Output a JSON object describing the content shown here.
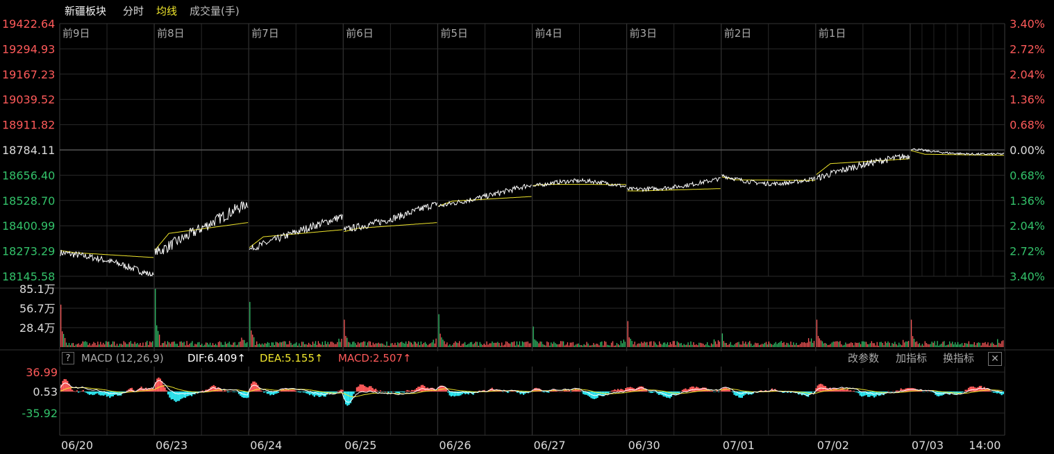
{
  "header": {
    "title": "新疆板块",
    "tab_fenshi": "分时",
    "tab_junxian": "均线",
    "tab_volume": "成交量(手)"
  },
  "colors": {
    "price": "#ffffff",
    "avg": "#f0e62c",
    "up": "#ff5a5a",
    "down": "#33c26a",
    "macd_neg": "#2fe6f0",
    "grid": "#2a2a2a"
  },
  "macd_panel": {
    "help_label": "?",
    "indicator": "MACD (12,26,9)",
    "dif": "DIF:6.409↑",
    "dea": "DEA:5.155↑",
    "macd": "MACD:2.507↑",
    "btn_params": "改参数",
    "btn_add": "加指标",
    "btn_switch": "换指标",
    "btn_close": "✕"
  },
  "chart_data": [
    {
      "type": "line",
      "title": "新疆板块",
      "price_axis_labels": [
        "19422.64",
        "19294.93",
        "19167.23",
        "19039.52",
        "18911.82",
        "18784.11",
        "18656.40",
        "18528.70",
        "18400.99",
        "18273.29",
        "18145.58"
      ],
      "pct_axis_labels": [
        "3.40%",
        "2.72%",
        "2.04%",
        "1.36%",
        "0.68%",
        "0.00%",
        "0.68%",
        "1.36%",
        "2.04%",
        "2.72%",
        "3.40%"
      ],
      "ylim": [
        18145.58,
        19422.64
      ],
      "reference_price": 18784.11,
      "day_markers": [
        "前9日",
        "前8日",
        "前7日",
        "前6日",
        "前5日",
        "前4日",
        "前3日",
        "前2日",
        "前1日"
      ],
      "x_dates": [
        "06/20",
        "06/23",
        "06/24",
        "06/25",
        "06/26",
        "06/27",
        "06/30",
        "07/01",
        "07/02",
        "07/03",
        "14:00"
      ],
      "series": [
        {
          "name": "分时",
          "days": [
            {
              "date": "06/20",
              "open": 18265,
              "close": 18148,
              "high": 18305,
              "low": 18148,
              "avg": 18255
            },
            {
              "date": "06/23",
              "open": 18260,
              "close": 18518,
              "high": 18522,
              "low": 18255,
              "avg": 18385
            },
            {
              "date": "06/24",
              "open": 18280,
              "close": 18448,
              "high": 18458,
              "low": 18280,
              "avg": 18360
            },
            {
              "date": "06/25",
              "open": 18380,
              "close": 18515,
              "high": 18518,
              "low": 18350,
              "avg": 18400
            },
            {
              "date": "06/26",
              "open": 18500,
              "close": 18610,
              "high": 18612,
              "low": 18485,
              "avg": 18535
            },
            {
              "date": "06/27",
              "open": 18600,
              "close": 18598,
              "high": 18680,
              "low": 18582,
              "avg": 18610
            },
            {
              "date": "06/30",
              "open": 18585,
              "close": 18640,
              "high": 18645,
              "low": 18545,
              "avg": 18582
            },
            {
              "date": "07/01",
              "open": 18655,
              "close": 18640,
              "high": 18660,
              "low": 18560,
              "avg": 18632
            },
            {
              "date": "07/02",
              "open": 18640,
              "close": 18755,
              "high": 18790,
              "low": 18632,
              "avg": 18725
            },
            {
              "date": "07/03",
              "open": 18790,
              "close": 18764,
              "high": 18790,
              "low": 18740,
              "avg": 18760
            }
          ]
        },
        {
          "name": "均线"
        }
      ]
    },
    {
      "type": "bar",
      "title": "成交量(手)",
      "y_labels": [
        "85.1万",
        "56.7万",
        "28.4万"
      ],
      "ylim": [
        0,
        85.1
      ],
      "unit": "万",
      "open_spike": [
        62,
        85.1,
        66,
        40,
        48,
        30,
        38,
        20,
        40,
        40
      ],
      "typical_level": 6
    },
    {
      "type": "bar",
      "title": "MACD (12,26,9)",
      "y_labels": [
        "36.99",
        "0.53",
        "-35.92"
      ],
      "ylim": [
        -45,
        45
      ],
      "DIF": 6.409,
      "DEA": 5.155,
      "MACD": 2.507
    }
  ]
}
